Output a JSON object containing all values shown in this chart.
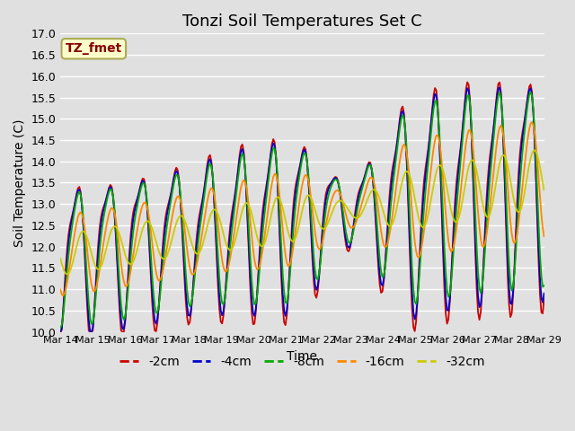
{
  "title": "Tonzi Soil Temperatures Set C",
  "xlabel": "Time",
  "ylabel": "Soil Temperature (C)",
  "ylim": [
    10.0,
    17.0
  ],
  "background_color": "#e0e0e0",
  "series_colors": {
    "-2cm": "#cc0000",
    "-4cm": "#0000cc",
    "-8cm": "#00aa00",
    "-16cm": "#ff8800",
    "-32cm": "#cccc00"
  },
  "legend_label": "TZ_fmet",
  "legend_bg": "#ffffcc",
  "legend_border": "#aaaa55",
  "x_tick_labels": [
    "Mar 14",
    "Mar 15",
    "Mar 16",
    "Mar 17",
    "Mar 18",
    "Mar 19",
    "Mar 20",
    "Mar 21",
    "Mar 22",
    "Mar 23",
    "Mar 24",
    "Mar 25",
    "Mar 26",
    "Mar 27",
    "Mar 28",
    "Mar 29"
  ],
  "title_fontsize": 13,
  "axis_fontsize": 10,
  "tick_fontsize": 9
}
